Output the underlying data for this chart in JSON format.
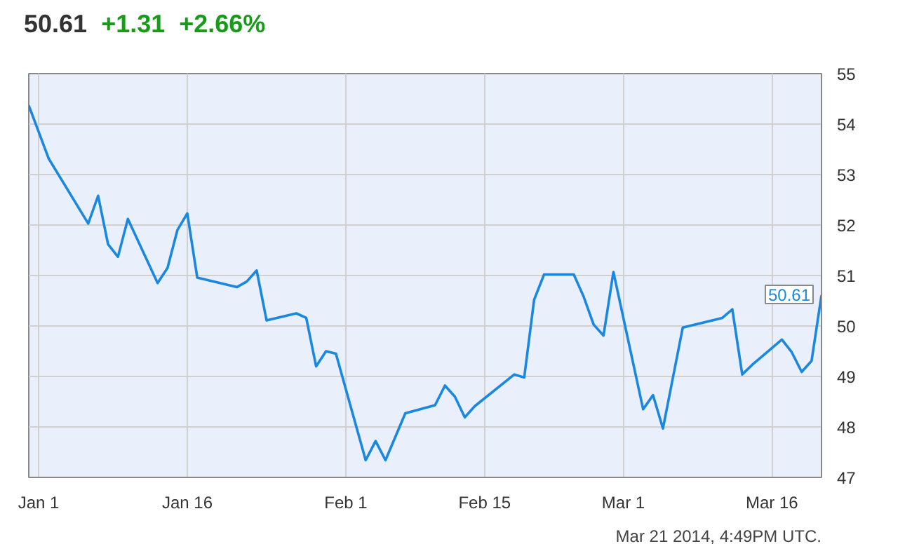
{
  "chart_data": {
    "type": "line",
    "title": "50.61",
    "subtitle": "+1.31  +2.66%",
    "annotations": [
      "Mar 21 2014, 4:49PM UTC."
    ],
    "x": [
      "2013-12-31",
      "2014-01-02",
      "2014-01-06",
      "2014-01-07",
      "2014-01-08",
      "2014-01-09",
      "2014-01-10",
      "2014-01-13",
      "2014-01-14",
      "2014-01-15",
      "2014-01-16",
      "2014-01-17",
      "2014-01-21",
      "2014-01-22",
      "2014-01-23",
      "2014-01-24",
      "2014-01-27",
      "2014-01-28",
      "2014-01-29",
      "2014-01-30",
      "2014-01-31",
      "2014-02-03",
      "2014-02-04",
      "2014-02-05",
      "2014-02-07",
      "2014-02-10",
      "2014-02-11",
      "2014-02-12",
      "2014-02-13",
      "2014-02-14",
      "2014-02-18",
      "2014-02-19",
      "2014-02-20",
      "2014-02-21",
      "2014-02-24",
      "2014-02-25",
      "2014-02-26",
      "2014-02-27",
      "2014-02-28",
      "2014-03-03",
      "2014-03-04",
      "2014-03-05",
      "2014-03-07",
      "2014-03-11",
      "2014-03-12",
      "2014-03-13",
      "2014-03-14",
      "2014-03-17",
      "2014-03-18",
      "2014-03-19",
      "2014-03-20",
      "2014-03-21"
    ],
    "series": [
      {
        "color": "#1a87e0",
        "values": [
          54.37,
          53.32,
          52.03,
          52.58,
          51.62,
          51.37,
          52.12,
          50.85,
          51.15,
          51.9,
          52.23,
          50.96,
          50.77,
          50.88,
          51.1,
          50.11,
          50.25,
          50.16,
          49.2,
          49.5,
          49.45,
          47.34,
          47.72,
          47.34,
          48.27,
          48.43,
          48.82,
          48.6,
          48.19,
          48.41,
          49.04,
          48.98,
          50.52,
          51.02,
          51.02,
          50.58,
          50.03,
          49.81,
          51.07,
          48.35,
          48.63,
          47.97,
          49.97,
          50.16,
          50.33,
          49.04,
          49.23,
          49.73,
          49.48,
          49.09,
          49.31,
          50.61
        ],
        "value_labels": [
          null,
          null,
          null,
          null,
          null,
          null,
          null,
          null,
          null,
          null,
          null,
          null,
          null,
          null,
          null,
          null,
          null,
          null,
          null,
          null,
          null,
          null,
          null,
          null,
          null,
          null,
          null,
          null,
          null,
          null,
          null,
          null,
          null,
          null,
          null,
          null,
          null,
          null,
          null,
          null,
          null,
          null,
          null,
          null,
          null,
          null,
          null,
          null,
          null,
          null,
          null,
          "50.61"
        ]
      }
    ],
    "xlim": [
      "2013-12-31",
      "2014-03-21"
    ],
    "xticks": [
      {
        "value": "2014-01-01",
        "label": "Jan 1"
      },
      {
        "value": "2014-01-16",
        "label": "Jan 16"
      },
      {
        "value": "2014-02-01",
        "label": "Feb 1"
      },
      {
        "value": "2014-02-15",
        "label": "Feb 15"
      },
      {
        "value": "2014-03-01",
        "label": "Mar 1"
      },
      {
        "value": "2014-03-16",
        "label": "Mar 16"
      }
    ],
    "ylim": [
      47,
      55
    ],
    "yticks": [
      47,
      48,
      49,
      50,
      51,
      52,
      53,
      54,
      55
    ],
    "grid": true,
    "marker": "none",
    "line_style": "solid"
  }
}
